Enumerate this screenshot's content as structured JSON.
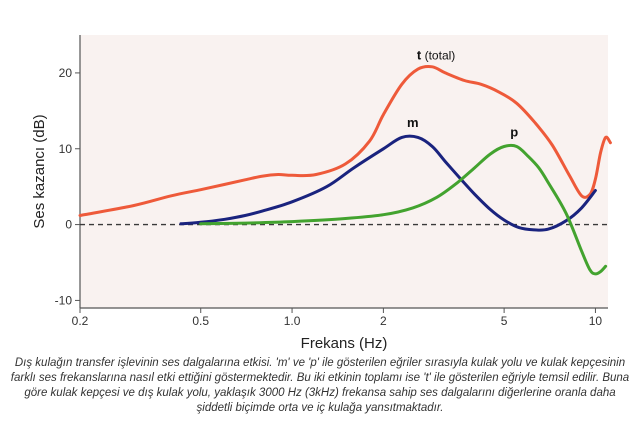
{
  "chart_data": {
    "type": "line",
    "title": "",
    "xlabel": "Frekans (Hz)",
    "ylabel": "Ses kazancı (dB)",
    "xscale": "log",
    "xlim": [
      0.2,
      11
    ],
    "ylim": [
      -11,
      25
    ],
    "x_ticks": [
      0.2,
      0.5,
      1.0,
      2,
      5,
      10
    ],
    "x_tick_labels": [
      "0.2",
      "0.5",
      "1.0",
      "2",
      "5",
      "10"
    ],
    "y_ticks": [
      -10,
      0,
      10,
      20
    ],
    "y_tick_labels": [
      "-10",
      "0",
      "10",
      "20"
    ],
    "grid": false,
    "reference_line": {
      "y": 0,
      "style": "dashed",
      "color": "#3a3a3a"
    },
    "colors": {
      "background": "#f9f2f0",
      "axis": "#555555"
    },
    "series": [
      {
        "name": "t (total)",
        "label": "t",
        "label_suffix": " (total)",
        "label_at": [
          2.7,
          21.8
        ],
        "color": "#ee5a3a",
        "x": [
          0.2,
          0.3,
          0.4,
          0.5,
          0.6,
          0.7,
          0.8,
          0.9,
          1.0,
          1.2,
          1.5,
          1.8,
          2.0,
          2.3,
          2.6,
          2.9,
          3.2,
          3.7,
          4.2,
          4.8,
          5.5,
          6.3,
          7.2,
          8.2,
          9.0,
          9.6,
          10.0,
          10.4,
          10.8,
          11.2
        ],
        "values": [
          1.2,
          2.5,
          3.8,
          4.6,
          5.3,
          5.9,
          6.4,
          6.6,
          6.5,
          6.6,
          8.0,
          11.0,
          14.5,
          18.5,
          20.5,
          20.8,
          20.0,
          19.0,
          18.5,
          17.5,
          16.0,
          13.5,
          10.5,
          6.5,
          3.8,
          4.0,
          6.0,
          9.5,
          11.5,
          10.8
        ]
      },
      {
        "name": "m",
        "label": "m",
        "label_at": [
          2.5,
          12.9
        ],
        "color": "#1a237e",
        "x": [
          0.43,
          0.5,
          0.6,
          0.7,
          0.8,
          1.0,
          1.3,
          1.6,
          2.0,
          2.3,
          2.6,
          2.9,
          3.2,
          3.6,
          4.0,
          4.5,
          5.0,
          5.6,
          6.3,
          7.0,
          8.0,
          9.0,
          10.0
        ],
        "values": [
          0.1,
          0.3,
          0.7,
          1.2,
          1.8,
          3.0,
          5.0,
          7.5,
          10.0,
          11.5,
          11.5,
          10.3,
          8.3,
          6.0,
          4.0,
          2.0,
          0.6,
          -0.4,
          -0.7,
          -0.6,
          0.5,
          2.2,
          4.5
        ]
      },
      {
        "name": "p",
        "label": "p",
        "label_at": [
          5.4,
          11.6
        ],
        "color": "#43a32f",
        "x": [
          0.5,
          0.7,
          1.0,
          1.5,
          2.0,
          2.5,
          3.0,
          3.5,
          4.0,
          4.5,
          5.0,
          5.5,
          6.0,
          6.5,
          7.0,
          8.0,
          9.0,
          9.6,
          10.0,
          10.4,
          10.8
        ],
        "values": [
          0.1,
          0.2,
          0.4,
          0.8,
          1.3,
          2.2,
          3.6,
          5.5,
          7.5,
          9.3,
          10.3,
          10.3,
          9.0,
          7.5,
          5.5,
          1.5,
          -3.5,
          -6.0,
          -6.5,
          -6.2,
          -5.5
        ]
      }
    ]
  },
  "caption": "Dış kulağın transfer işlevinin ses dalgalarına etkisi. 'm' ve 'p' ile gösterilen eğriler sırasıyla kulak yolu ve kulak kepçesinin farklı ses frekanslarına nasıl etki ettiğini göstermektedir. Bu iki etkinin toplamı ise 't' ile gösterilen eğriyle temsil edilir. Buna göre kulak kepçesi ve dış kulak yolu, yaklaşık 3000 Hz (3kHz) frekansa sahip ses dalgalarını diğerlerine oranla daha şiddetli biçimde orta ve iç kulağa yansıtmaktadır."
}
